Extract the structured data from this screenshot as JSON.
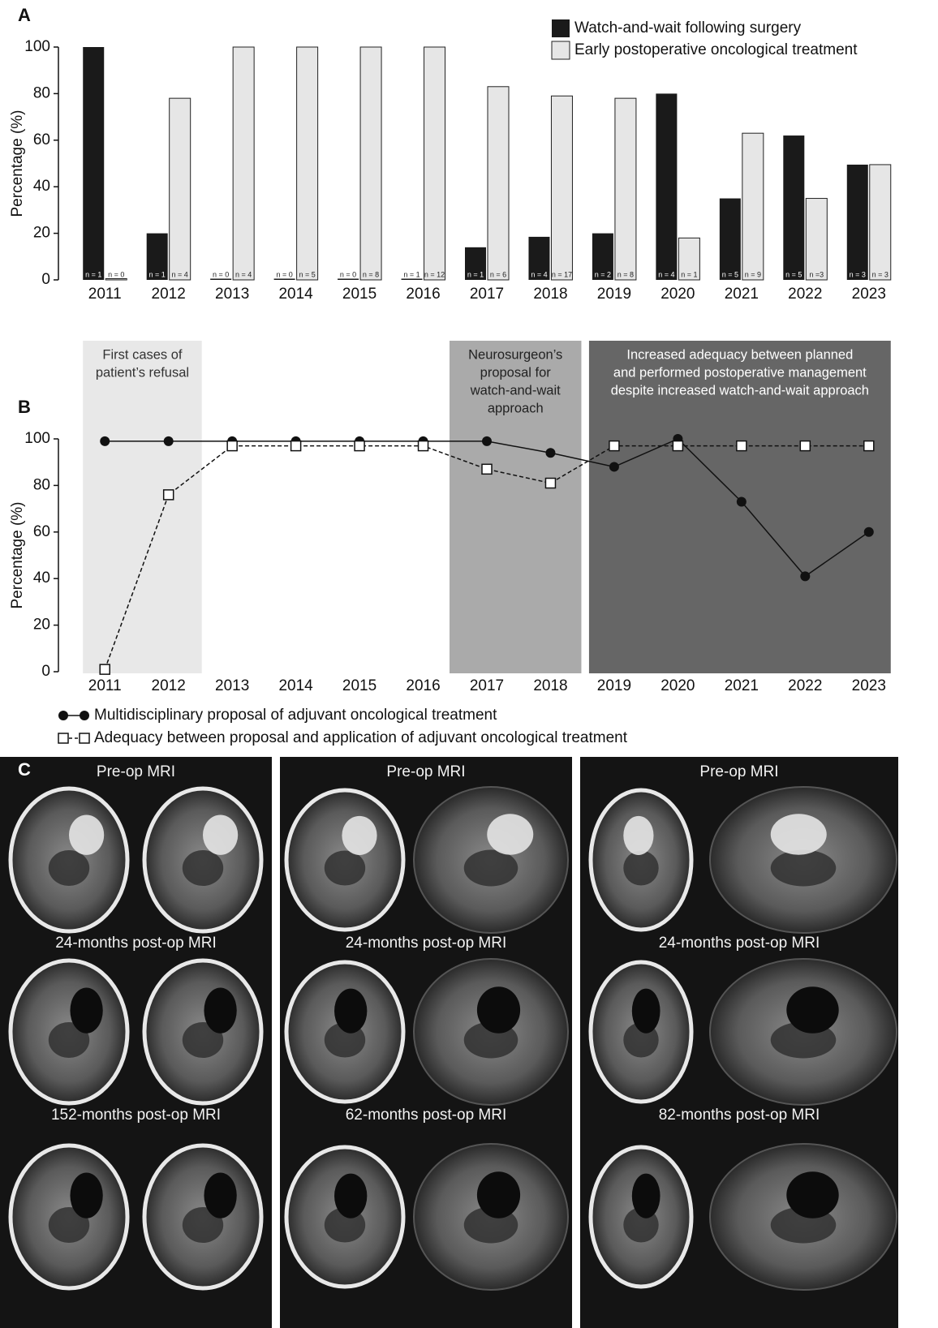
{
  "chart_data": [
    {
      "type": "bar",
      "panel_label": "A",
      "y_label": "Percentage (%)",
      "categories": [
        "2011",
        "2012",
        "2013",
        "2014",
        "2015",
        "2016",
        "2017",
        "2018",
        "2019",
        "2020",
        "2021",
        "2022",
        "2023"
      ],
      "series": [
        {
          "name": "Watch-and-wait following surgery",
          "color": "#1a1a1a",
          "values": [
            100,
            20,
            0,
            0,
            0,
            0,
            14,
            18.5,
            20,
            80,
            35,
            62,
            49.5
          ],
          "n_labels": [
            "n = 1",
            "n = 1",
            "n = 0",
            "n = 0",
            "n = 0",
            "n = 1",
            "n = 1",
            "n = 4",
            "n = 2",
            "n = 4",
            "n = 5",
            "n = 5",
            "n = 3"
          ]
        },
        {
          "name": "Early postoperative oncological treatment",
          "color": "#e6e6e6",
          "values": [
            0,
            78,
            100,
            100,
            100,
            100,
            83,
            79,
            78,
            18,
            63,
            35,
            49.5
          ],
          "n_labels": [
            "n = 0",
            "n = 4",
            "n = 4",
            "n = 5",
            "n = 8",
            "n = 12",
            "n = 6",
            "n = 17",
            "n = 8",
            "n = 1",
            "n = 9",
            "n =3",
            "n = 3"
          ]
        }
      ],
      "ylim": [
        0,
        100
      ],
      "yticks": [
        0,
        20,
        40,
        60,
        80,
        100
      ],
      "legend": "top-right"
    },
    {
      "type": "line",
      "panel_label": "B",
      "y_label": "Percentage (%)",
      "categories": [
        "2011",
        "2012",
        "2013",
        "2014",
        "2015",
        "2016",
        "2017",
        "2018",
        "2019",
        "2020",
        "2021",
        "2022",
        "2023"
      ],
      "series": [
        {
          "name": "Multidisciplinary proposal of adjuvant oncological treatment",
          "color": "#111111",
          "marker": "circle",
          "dash": "solid",
          "values": [
            99,
            99,
            99,
            99,
            99,
            99,
            99,
            94,
            88,
            100,
            73,
            41,
            60
          ]
        },
        {
          "name": "Adequacy between proposal and application of adjuvant oncological treatment",
          "color": "#111111",
          "marker": "square",
          "dash": "dashed",
          "values": [
            1,
            76,
            97,
            97,
            97,
            97,
            87,
            81,
            97,
            97,
            97,
            97,
            97
          ]
        }
      ],
      "annotations": [
        {
          "lines": [
            "First cases of",
            "patient’s refusal"
          ],
          "color": "#e8e8e8",
          "text_color": "#333333"
        },
        {
          "lines": [
            "Neurosurgeon’s",
            "proposal for",
            "watch-and-wait",
            "approach"
          ],
          "color": "#aaaaaa",
          "text_color": "#222222"
        },
        {
          "lines": [
            "Increased adequacy between planned",
            "and performed postoperative management",
            "despite increased watch-and-wait approach"
          ],
          "color": "#666666",
          "text_color": "#ffffff"
        }
      ],
      "ylim": [
        0,
        100
      ],
      "yticks": [
        0,
        20,
        40,
        60,
        80,
        100
      ],
      "legend": "bottom"
    }
  ],
  "figure_c": {
    "panel_label": "C",
    "columns": [
      {
        "rows": [
          "Pre-op MRI",
          "24-months post-op MRI",
          "152-months post-op MRI"
        ]
      },
      {
        "rows": [
          "Pre-op MRI",
          "24-months post-op MRI",
          "62-months post-op MRI"
        ]
      },
      {
        "rows": [
          "Pre-op MRI",
          "24-months post-op MRI",
          "82-months post-op MRI"
        ]
      }
    ]
  }
}
